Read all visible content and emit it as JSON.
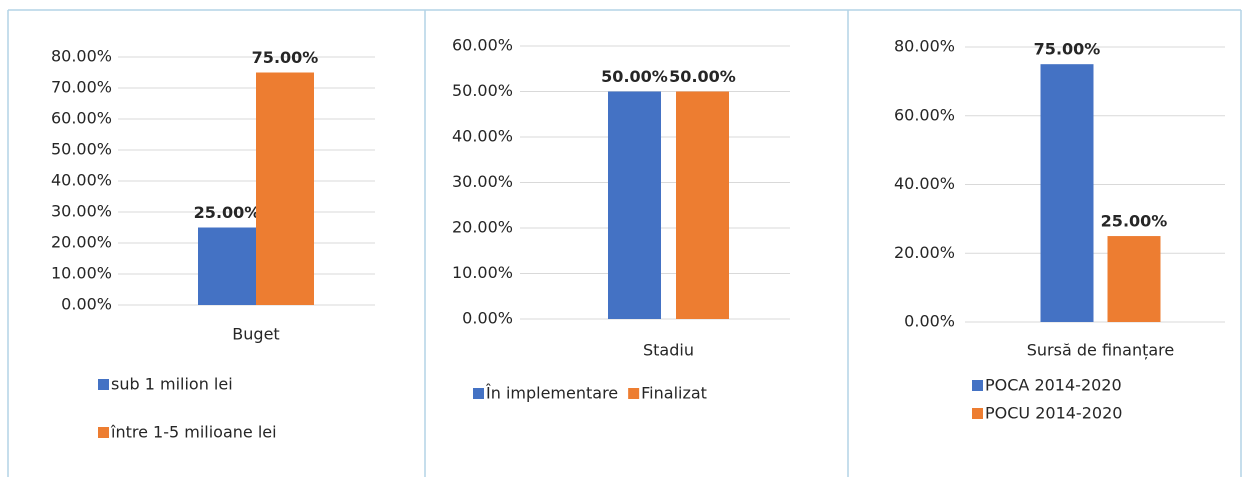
{
  "chart_data": [
    {
      "type": "bar",
      "categories": [
        "Buget"
      ],
      "series": [
        {
          "name": "sub 1 milion lei",
          "color": "#4472c4",
          "values": [
            25
          ],
          "value_labels": [
            "25.00%"
          ]
        },
        {
          "name": "între 1-5 milioane lei",
          "color": "#ed7d31",
          "values": [
            75
          ],
          "value_labels": [
            "75.00%"
          ]
        }
      ],
      "ylim": [
        0,
        80
      ],
      "yticks": [
        {
          "value": 0,
          "label": "0.00%"
        },
        {
          "value": 10,
          "label": "10.00%"
        },
        {
          "value": 20,
          "label": "20.00%"
        },
        {
          "value": 30,
          "label": "30.00%"
        },
        {
          "value": 40,
          "label": "40.00%"
        },
        {
          "value": 50,
          "label": "50.00%"
        },
        {
          "value": 60,
          "label": "60.00%"
        },
        {
          "value": 70,
          "label": "70.00%"
        },
        {
          "value": 80,
          "label": "80.00%"
        }
      ],
      "grid": true,
      "legend": "bottom"
    },
    {
      "type": "bar",
      "categories": [
        "Stadiu"
      ],
      "series": [
        {
          "name": "În implementare",
          "color": "#4472c4",
          "values": [
            50
          ],
          "value_labels": [
            "50.00%"
          ]
        },
        {
          "name": "Finalizat",
          "color": "#ed7d31",
          "values": [
            50
          ],
          "value_labels": [
            "50.00%"
          ]
        }
      ],
      "ylim": [
        0,
        60
      ],
      "yticks": [
        {
          "value": 0,
          "label": "0.00%"
        },
        {
          "value": 10,
          "label": "10.00%"
        },
        {
          "value": 20,
          "label": "20.00%"
        },
        {
          "value": 30,
          "label": "30.00%"
        },
        {
          "value": 40,
          "label": "40.00%"
        },
        {
          "value": 50,
          "label": "50.00%"
        },
        {
          "value": 60,
          "label": "60.00%"
        }
      ],
      "grid": true,
      "legend": "bottom"
    },
    {
      "type": "bar",
      "categories": [
        "Sursă de finanțare"
      ],
      "series": [
        {
          "name": "POCA 2014-2020",
          "color": "#4472c4",
          "values": [
            75
          ],
          "value_labels": [
            "75.00%"
          ]
        },
        {
          "name": "POCU 2014-2020",
          "color": "#ed7d31",
          "values": [
            25
          ],
          "value_labels": [
            "25.00%"
          ]
        }
      ],
      "ylim": [
        0,
        80
      ],
      "yticks": [
        {
          "value": 0,
          "label": "0.00%"
        },
        {
          "value": 20,
          "label": "20.00%"
        },
        {
          "value": 40,
          "label": "40.00%"
        },
        {
          "value": 60,
          "label": "60.00%"
        },
        {
          "value": 80,
          "label": "80.00%"
        }
      ],
      "grid": true,
      "legend": "bottom"
    }
  ]
}
